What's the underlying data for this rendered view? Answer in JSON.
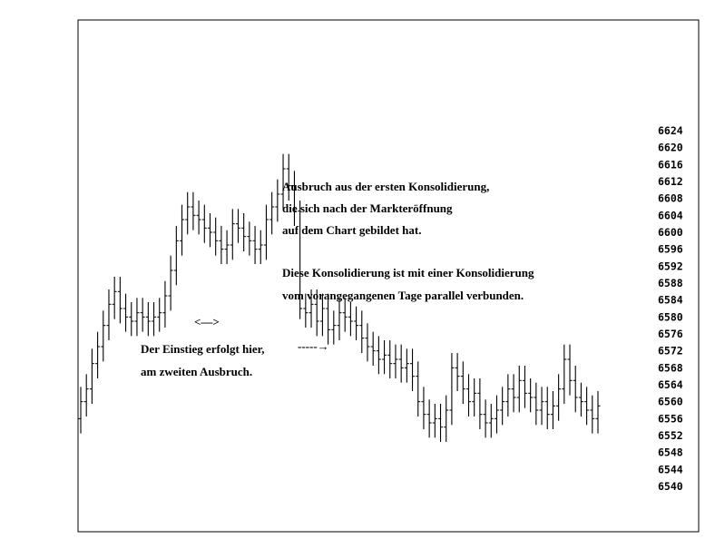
{
  "chart_data": {
    "type": "ohlc",
    "title": "",
    "xlabel": "",
    "ylabel": "",
    "ylim": [
      6540,
      6624
    ],
    "y_ticks": [
      6624,
      6620,
      6616,
      6612,
      6608,
      6604,
      6600,
      6596,
      6592,
      6588,
      6584,
      6580,
      6576,
      6572,
      6568,
      6564,
      6560,
      6556,
      6552,
      6548,
      6544,
      6540
    ],
    "grid": false,
    "close_path": [
      6560,
      6563,
      6569,
      6573,
      6578,
      6583,
      6586,
      6582,
      6580,
      6579,
      6581,
      6580,
      6579,
      6580,
      6581,
      6585,
      6591,
      6598,
      6603,
      6606,
      6604,
      6603,
      6601,
      6600,
      6598,
      6596,
      6597,
      6602,
      6601,
      6599,
      6598,
      6596,
      6597,
      6603,
      6606,
      6609,
      6615,
      6611,
      6605,
      6582,
      6581,
      6583,
      6579,
      6582,
      6577,
      6578,
      6581,
      6580,
      6579,
      6578,
      6575,
      6573,
      6572,
      6570,
      6571,
      6569,
      6570,
      6568,
      6569,
      6566,
      6560,
      6557,
      6555,
      6556,
      6554,
      6558,
      6568,
      6566,
      6563,
      6560,
      6562,
      6557,
      6555,
      6556,
      6558,
      6560,
      6563,
      6561,
      6565,
      6562,
      6561,
      6558,
      6560,
      6557,
      6559,
      6563,
      6570,
      6565,
      6561,
      6560,
      6558,
      6556,
      6559
    ],
    "annotations": {
      "breakout_lines": [
        "Ausbruch aus der ersten Konsolidierung,",
        "die sich nach der Markteröffnung",
        "auf dem Chart gebildet hat."
      ],
      "consolidation_lines": [
        "Diese Konsolidierung ist mit einer Konsolidierung",
        "vom vorangegangenen Tage parallel verbunden."
      ],
      "arrow_marker": "<—>",
      "entry_lines": [
        "Der Einstieg erfolgt hier,",
        "am zweiten Ausbruch."
      ],
      "entry_arrow": "-----→"
    }
  }
}
